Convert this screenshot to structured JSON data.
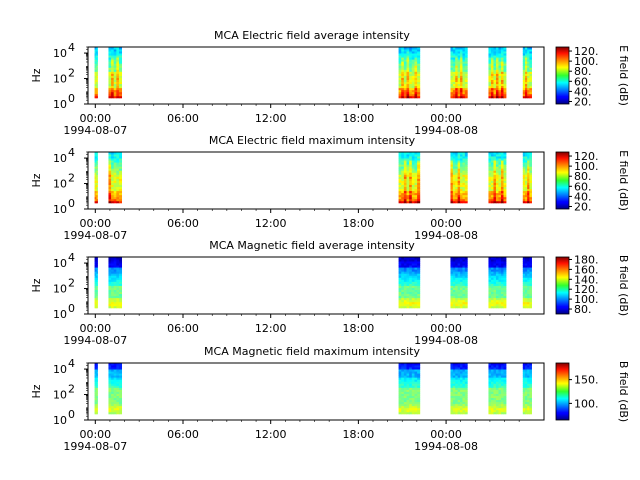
{
  "chart_data": [
    {
      "type": "heatmap",
      "title": "MCA  Electric field average intensity",
      "ylabel": "Hz",
      "y_scale": "log",
      "ylim": [
        1,
        30000
      ],
      "y_ticks": [
        "10^0",
        "10^2",
        "10^4"
      ],
      "x_ticks": [
        "00:00",
        "06:00",
        "12:00",
        "18:00",
        "00:00"
      ],
      "x_sublabels": [
        "1994-08-07",
        "",
        "",
        "",
        "1994-08-08"
      ],
      "colorbar_label": "E field (dB)",
      "colorbar_ticks": [
        "20.",
        "40.",
        "60.",
        "80.",
        "100.",
        "120."
      ],
      "color_range": [
        15,
        128
      ],
      "colormap": "jet",
      "data_segments_hours": [
        [
          -0.05,
          0.15
        ],
        [
          0.9,
          1.8
        ],
        [
          20.75,
          22.2
        ],
        [
          24.3,
          25.45
        ],
        [
          26.9,
          28.1
        ],
        [
          29.25,
          29.85
        ]
      ],
      "x_range_hours": [
        -0.5,
        30.7
      ]
    },
    {
      "type": "heatmap",
      "title": "MCA  Electric field maximum intensity",
      "ylabel": "Hz",
      "y_scale": "log",
      "ylim": [
        1,
        30000
      ],
      "y_ticks": [
        "10^0",
        "10^2",
        "10^4"
      ],
      "x_ticks": [
        "00:00",
        "06:00",
        "12:00",
        "18:00",
        "00:00"
      ],
      "x_sublabels": [
        "1994-08-07",
        "",
        "",
        "",
        "1994-08-08"
      ],
      "colorbar_label": "E field (dB)",
      "colorbar_ticks": [
        "20.",
        "40.",
        "60.",
        "80.",
        "100.",
        "120."
      ],
      "color_range": [
        15,
        128
      ],
      "colormap": "jet"
    },
    {
      "type": "heatmap",
      "title": "MCA  Magnetic field average intensity",
      "ylabel": "Hz",
      "y_scale": "log",
      "ylim": [
        1,
        30000
      ],
      "y_ticks": [
        "10^0",
        "10^2",
        "10^4"
      ],
      "x_ticks": [
        "00:00",
        "06:00",
        "12:00",
        "18:00",
        "00:00"
      ],
      "x_sublabels": [
        "1994-08-07",
        "",
        "",
        "",
        "1994-08-08"
      ],
      "colorbar_label": "B field (dB)",
      "colorbar_ticks": [
        "80.",
        "100.",
        "120.",
        "140.",
        "160.",
        "180."
      ],
      "color_range": [
        70,
        185
      ],
      "colormap": "jet"
    },
    {
      "type": "heatmap",
      "title": "MCA  Magnetic field maximum intensity",
      "ylabel": "Hz",
      "y_scale": "log",
      "ylim": [
        1,
        30000
      ],
      "y_ticks": [
        "10^0",
        "10^2",
        "10^4"
      ],
      "x_ticks": [
        "00:00",
        "06:00",
        "12:00",
        "18:00",
        "00:00"
      ],
      "x_sublabels": [
        "1994-08-07",
        "",
        "",
        "",
        "1994-08-08"
      ],
      "colorbar_label": "B field (dB)",
      "colorbar_ticks": [
        "100.",
        "150."
      ],
      "color_range": [
        65,
        185
      ],
      "colormap": "jet"
    }
  ]
}
